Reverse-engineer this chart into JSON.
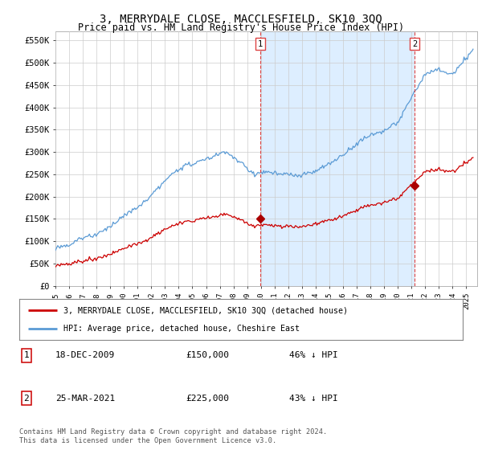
{
  "title": "3, MERRYDALE CLOSE, MACCLESFIELD, SK10 3QQ",
  "subtitle": "Price paid vs. HM Land Registry's House Price Index (HPI)",
  "title_fontsize": 10,
  "subtitle_fontsize": 8.5,
  "ylabel_ticks": [
    "£0",
    "£50K",
    "£100K",
    "£150K",
    "£200K",
    "£250K",
    "£300K",
    "£350K",
    "£400K",
    "£450K",
    "£500K",
    "£550K"
  ],
  "ytick_values": [
    0,
    50000,
    100000,
    150000,
    200000,
    250000,
    300000,
    350000,
    400000,
    450000,
    500000,
    550000
  ],
  "ylim": [
    0,
    570000
  ],
  "xlim_start": 1995.0,
  "xlim_end": 2025.8,
  "xtick_years": [
    1995,
    1996,
    1997,
    1998,
    1999,
    2000,
    2001,
    2002,
    2003,
    2004,
    2005,
    2006,
    2007,
    2008,
    2009,
    2010,
    2011,
    2012,
    2013,
    2014,
    2015,
    2016,
    2017,
    2018,
    2019,
    2020,
    2021,
    2022,
    2023,
    2024,
    2025
  ],
  "transaction1_x": 2009.96,
  "transaction1_y": 150000,
  "transaction1_label": "1",
  "transaction2_x": 2021.23,
  "transaction2_y": 225000,
  "transaction2_label": "2",
  "hpi_color": "#5b9bd5",
  "hpi_fill_color": "#ddeeff",
  "price_color": "#cc0000",
  "vline_color": "#dd4444",
  "dot_color": "#aa0000",
  "grid_color": "#cccccc",
  "bg_color": "#ffffff",
  "plot_bg_color": "#ffffff",
  "legend_label_price": "3, MERRYDALE CLOSE, MACCLESFIELD, SK10 3QQ (detached house)",
  "legend_label_hpi": "HPI: Average price, detached house, Cheshire East",
  "footer_text": "Contains HM Land Registry data © Crown copyright and database right 2024.\nThis data is licensed under the Open Government Licence v3.0.",
  "table_entries": [
    {
      "num": "1",
      "date": "18-DEC-2009",
      "price": "£150,000",
      "hpi": "46% ↓ HPI"
    },
    {
      "num": "2",
      "date": "25-MAR-2021",
      "price": "£225,000",
      "hpi": "43% ↓ HPI"
    }
  ]
}
